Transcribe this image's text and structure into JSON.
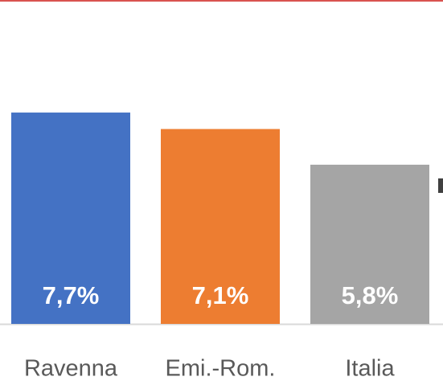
{
  "chart_data": {
    "type": "bar",
    "categories": [
      "Ravenna",
      "Emi.-Rom.",
      "Italia"
    ],
    "values": [
      7.7,
      7.1,
      5.8
    ],
    "value_labels": [
      "7,7%",
      "7,1%",
      "5,8%"
    ],
    "colors": [
      "#4472c4",
      "#ed7d31",
      "#a5a5a5"
    ]
  }
}
